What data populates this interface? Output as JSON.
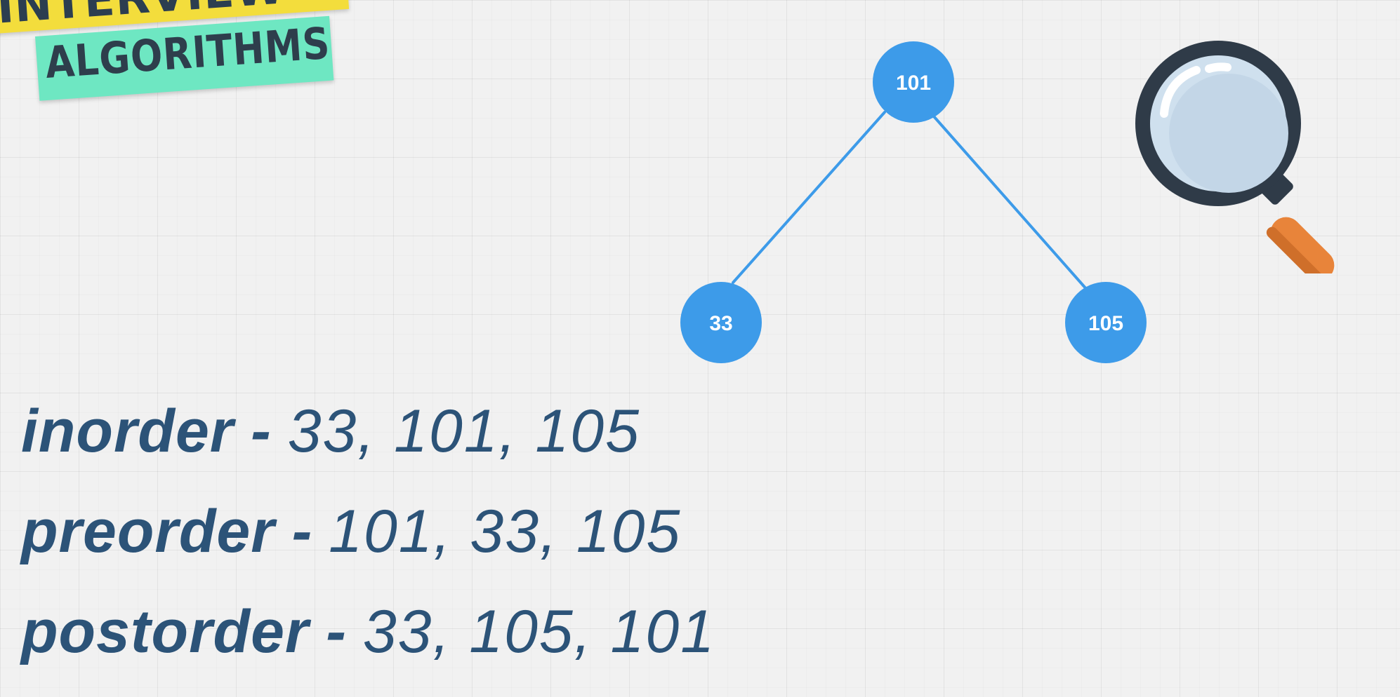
{
  "logo": {
    "top_text": "INTERVIEW",
    "bottom_text": "ALGORITHMS"
  },
  "tree": {
    "root": {
      "value": "101"
    },
    "left": {
      "value": "33"
    },
    "right": {
      "value": "105"
    }
  },
  "traversals": [
    {
      "name": "inorder",
      "separator": " - ",
      "sequence": "33, 101, 105"
    },
    {
      "name": "preorder",
      "separator": " - ",
      "sequence": "101, 33, 105"
    },
    {
      "name": "postorder",
      "separator": " - ",
      "sequence": "33, 105, 101"
    }
  ],
  "icons": {
    "magnifier": "magnifying-glass-icon"
  },
  "colors": {
    "node": "#3d9be9",
    "text": "#2c5378",
    "logo_yellow": "#f3dd3c",
    "logo_green": "#6ee7c2",
    "magnifier_handle": "#e8843a"
  }
}
